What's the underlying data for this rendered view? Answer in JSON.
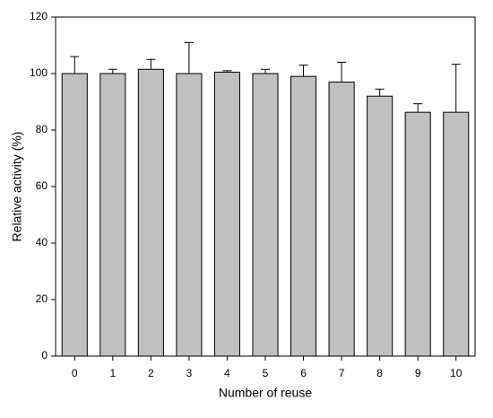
{
  "chart_data": {
    "type": "bar",
    "x_label": "Number of reuse",
    "y_label": "Relative activity (%)",
    "categories": [
      "0",
      "1",
      "2",
      "3",
      "4",
      "5",
      "6",
      "7",
      "8",
      "9",
      "10"
    ],
    "values": [
      100,
      100,
      101.5,
      100,
      100.5,
      100,
      99,
      97,
      92,
      86.3,
      86.3
    ],
    "errors": [
      6,
      1.5,
      3.5,
      11,
      0.5,
      1.5,
      4,
      7,
      2.5,
      3,
      17
    ],
    "color": "#c0c0c0",
    "ylim": [
      0,
      120
    ],
    "yticks": [
      0,
      20,
      40,
      60,
      80,
      100,
      120
    ],
    "grid": false
  }
}
